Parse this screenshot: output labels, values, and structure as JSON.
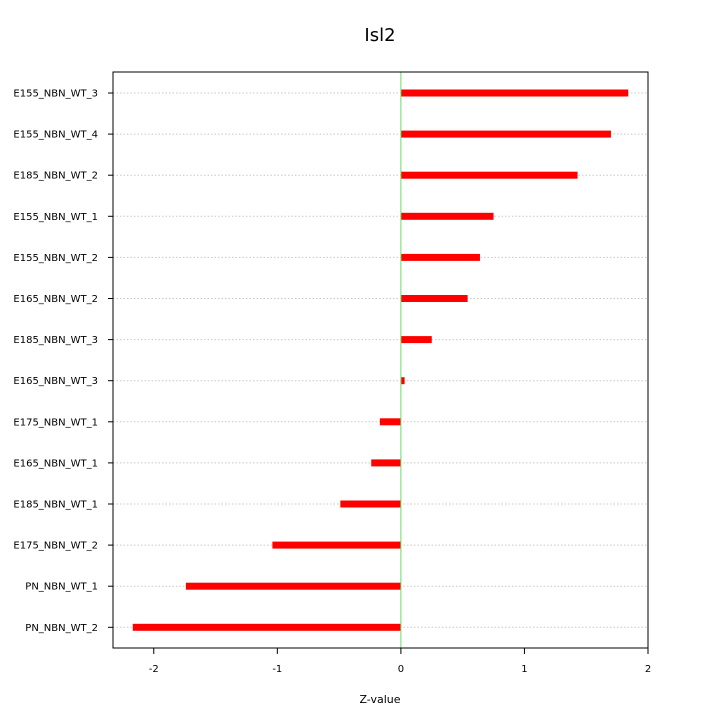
{
  "chart_data": {
    "type": "bar",
    "orientation": "horizontal",
    "title": "Isl2",
    "xlabel": "Z-value",
    "ylabel": "",
    "xlim": [
      -2.33,
      2.0
    ],
    "xticks": [
      -2,
      -1,
      0,
      1,
      2
    ],
    "xtick_labels": [
      "-2",
      "-1",
      "0",
      "1",
      "2"
    ],
    "reference_line_x": 0,
    "grid": "horizontal dotted",
    "categories": [
      "E155_NBN_WT_3",
      "E155_NBN_WT_4",
      "E185_NBN_WT_2",
      "E155_NBN_WT_1",
      "E155_NBN_WT_2",
      "E165_NBN_WT_2",
      "E185_NBN_WT_3",
      "E165_NBN_WT_3",
      "E175_NBN_WT_1",
      "E165_NBN_WT_1",
      "E185_NBN_WT_1",
      "E175_NBN_WT_2",
      "PN_NBN_WT_1",
      "PN_NBN_WT_2"
    ],
    "values": [
      1.84,
      1.7,
      1.43,
      0.75,
      0.64,
      0.54,
      0.25,
      0.03,
      -0.17,
      -0.24,
      -0.49,
      -1.04,
      -1.74,
      -2.17
    ],
    "colors": {
      "bar": "#ff0000",
      "reference_line": "#66dd66",
      "grid": "#c8c8c8"
    }
  }
}
